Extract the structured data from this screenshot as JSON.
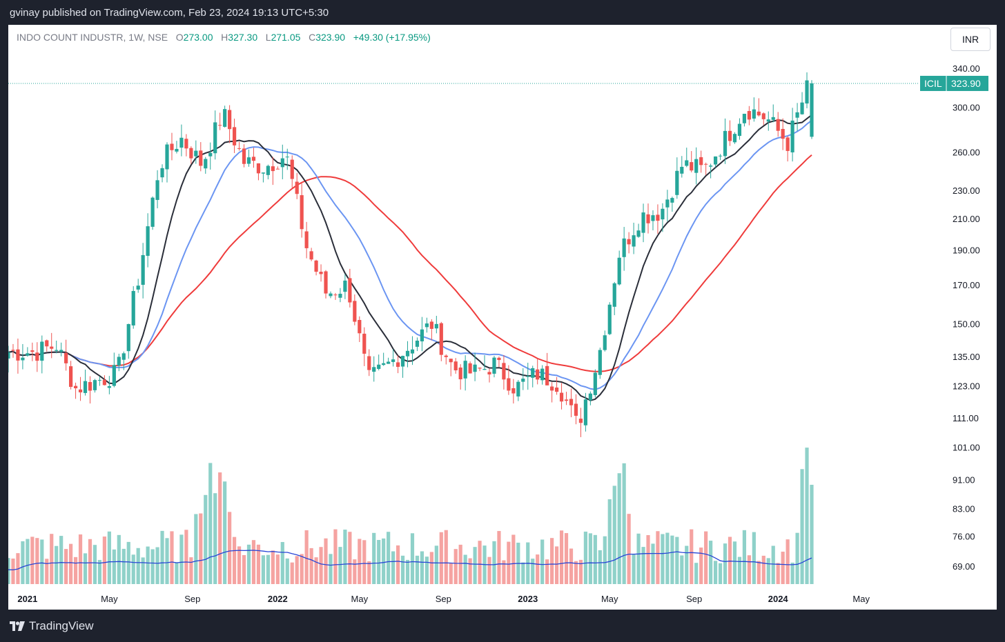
{
  "header": {
    "publisher_text": "gvinay published on TradingView.com, Feb 23, 2024 19:13 UTC+5:30"
  },
  "legend": {
    "symbol_text": "INDO COUNT INDUSTR, 1W, NSE",
    "open_label": "O",
    "open": "273.00",
    "high_label": "H",
    "high": "327.30",
    "low_label": "L",
    "low": "271.05",
    "close_label": "C",
    "close": "323.90",
    "change": "+49.30 (+17.95%)"
  },
  "currency": "INR",
  "footer": {
    "brand": "TradingView"
  },
  "price_badge": {
    "ticker": "ICIL",
    "value": "323.90"
  },
  "colors": {
    "up": "#26a69a",
    "down": "#ef5350",
    "up_volume": "#8fd1c9",
    "down_volume": "#f5a3a1",
    "ma_black": "#2a2e39",
    "ma_blue": "#6b95f2",
    "ma_red": "#ef3b3b",
    "volume_ma": "#2644d6",
    "last_price_line": "#26a69a"
  },
  "chart_data": {
    "type": "candlestick",
    "timeframe": "1W",
    "scale": "log",
    "grid": false,
    "y_ticks": [
      "340.00",
      "300.00",
      "260.00",
      "230.00",
      "210.00",
      "190.00",
      "170.00",
      "150.00",
      "135.00",
      "123.00",
      "111.00",
      "101.00",
      "91.00",
      "83.00",
      "76.00",
      "69.00"
    ],
    "x_ticks": [
      "2021",
      "May",
      "Sep",
      "2022",
      "May",
      "Sep",
      "2023",
      "May",
      "Sep",
      "2024",
      "May"
    ],
    "last_close": 323.9,
    "ohlc_anchors": [
      {
        "date": "2021-01",
        "close": 137
      },
      {
        "date": "2021-02",
        "close": 140
      },
      {
        "date": "2021-03",
        "close": 122
      },
      {
        "date": "2021-04",
        "close": 125
      },
      {
        "date": "2021-05",
        "close": 128
      },
      {
        "date": "2021-06",
        "close": 175
      },
      {
        "date": "2021-07",
        "close": 250
      },
      {
        "date": "2021-08",
        "close": 272
      },
      {
        "date": "2021-09",
        "close": 250
      },
      {
        "date": "2021-10",
        "close": 295
      },
      {
        "date": "2021-11",
        "close": 252
      },
      {
        "date": "2021-12",
        "close": 248
      },
      {
        "date": "2022-01",
        "close": 258
      },
      {
        "date": "2022-02",
        "close": 190
      },
      {
        "date": "2022-03",
        "close": 165
      },
      {
        "date": "2022-04",
        "close": 170
      },
      {
        "date": "2022-05",
        "close": 125
      },
      {
        "date": "2022-06",
        "close": 132
      },
      {
        "date": "2022-07",
        "close": 140
      },
      {
        "date": "2022-08",
        "close": 150
      },
      {
        "date": "2022-09",
        "close": 130
      },
      {
        "date": "2022-10",
        "close": 128
      },
      {
        "date": "2022-11",
        "close": 132
      },
      {
        "date": "2022-12",
        "close": 122
      },
      {
        "date": "2023-01",
        "close": 128
      },
      {
        "date": "2023-02",
        "close": 124
      },
      {
        "date": "2023-03",
        "close": 108
      },
      {
        "date": "2023-04",
        "close": 135
      },
      {
        "date": "2023-05",
        "close": 188
      },
      {
        "date": "2023-06",
        "close": 212
      },
      {
        "date": "2023-07",
        "close": 215
      },
      {
        "date": "2023-08",
        "close": 250
      },
      {
        "date": "2023-09",
        "close": 245
      },
      {
        "date": "2023-10",
        "close": 270
      },
      {
        "date": "2023-11",
        "close": 300
      },
      {
        "date": "2023-12",
        "close": 290
      },
      {
        "date": "2024-01",
        "close": 268
      },
      {
        "date": "2024-02",
        "close": 323.9
      }
    ],
    "volume_spikes": [
      "2021-09",
      "2021-10",
      "2023-05",
      "2024-02"
    ]
  }
}
